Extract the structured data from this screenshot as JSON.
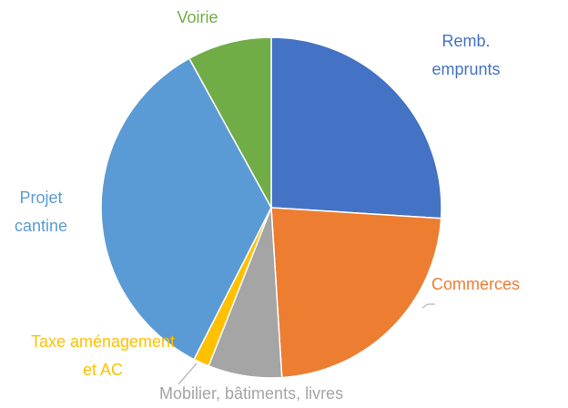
{
  "chart_data": {
    "type": "pie",
    "categories": [
      "Remb. emprunts",
      "Commerces",
      "Mobilier, bâtiments, livres",
      "Taxe aménagement et AC",
      "Projet cantine",
      "Voirie"
    ],
    "values": [
      26,
      23,
      7,
      1.5,
      34.5,
      8
    ],
    "colors": [
      "#4472c4",
      "#ed7d31",
      "#a5a5a5",
      "#ffc000",
      "#5b9bd5",
      "#70ad47"
    ]
  }
}
